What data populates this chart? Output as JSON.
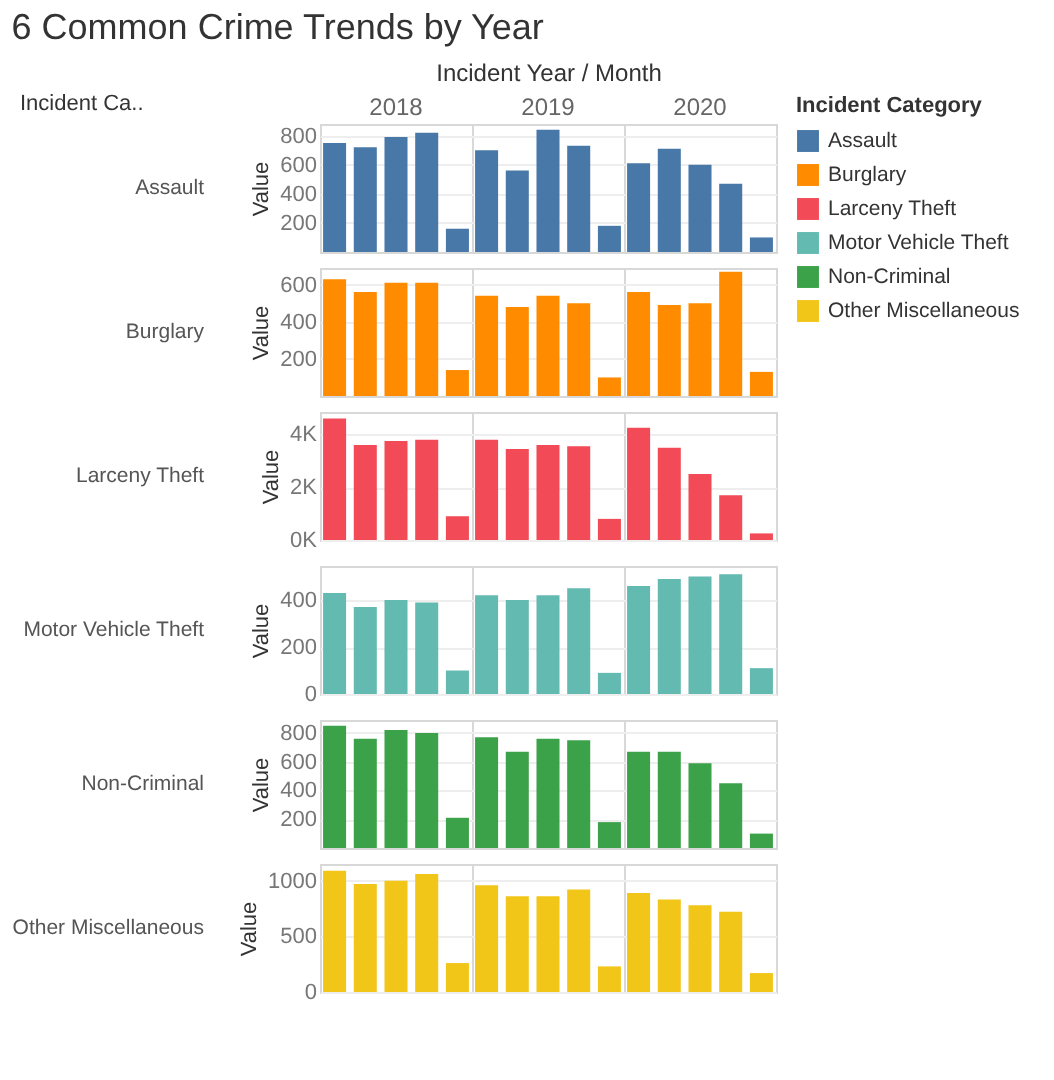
{
  "chart_data": [
    {
      "type": "other",
      "title": "6 Common Crime Trends by Year"
    },
    {
      "type": "bar",
      "title": "Assault",
      "xlabel": "Incident Year / Month",
      "ylabel": "Value",
      "annotations": [
        "Incident Ca.."
      ],
      "categories": [
        "2018",
        "2019",
        "2020"
      ],
      "ylim": [
        0,
        880
      ],
      "yticks": [
        200,
        400,
        600,
        800
      ],
      "grid": true,
      "series": [
        {
          "color": "#4878a8",
          "values": [
            750,
            700,
            610
          ]
        },
        {
          "color": "#4878a8",
          "values": [
            720,
            560,
            710
          ]
        },
        {
          "color": "#4878a8",
          "values": [
            790,
            840,
            600
          ]
        },
        {
          "color": "#4878a8",
          "values": [
            820,
            730,
            470
          ]
        },
        {
          "color": "#4878a8",
          "values": [
            160,
            180,
            100
          ]
        }
      ]
    },
    {
      "type": "bar",
      "title": "Burglary",
      "ylabel": "Value",
      "categories": [
        "2018",
        "2019",
        "2020"
      ],
      "ylim": [
        0,
        690
      ],
      "yticks": [
        200,
        400,
        600
      ],
      "grid": true,
      "tick_labels": "y",
      "series": [
        {
          "color": "#ff8b00",
          "values": [
            630,
            540,
            560
          ]
        },
        {
          "color": "#ff8b00",
          "values": [
            560,
            480,
            490
          ]
        },
        {
          "color": "#ff8b00",
          "values": [
            610,
            540,
            500
          ]
        },
        {
          "color": "#ff8b00",
          "values": [
            610,
            500,
            670
          ]
        },
        {
          "color": "#ff8b00",
          "values": [
            140,
            100,
            130
          ]
        }
      ]
    },
    {
      "type": "bar",
      "title": "Larceny Theft",
      "ylabel": "Value",
      "categories": [
        "2018",
        "2019",
        "2020"
      ],
      "ylim": [
        0,
        4850
      ],
      "yticks": [
        {
          "value": 0,
          "label": "0K"
        },
        {
          "value": 2000,
          "label": "2K"
        },
        {
          "value": 4000,
          "label": "4K"
        }
      ],
      "grid": true,
      "tick_labels": "y",
      "series": [
        {
          "color": "#f24b57",
          "values": [
            4600,
            3800,
            4250
          ]
        },
        {
          "color": "#f24b57",
          "values": [
            3600,
            3450,
            3500
          ]
        },
        {
          "color": "#f24b57",
          "values": [
            3750,
            3600,
            2500
          ]
        },
        {
          "color": "#f24b57",
          "values": [
            3800,
            3550,
            1700
          ]
        },
        {
          "color": "#f24b57",
          "values": [
            900,
            800,
            250
          ]
        }
      ]
    },
    {
      "type": "bar",
      "title": "Motor Vehicle Theft",
      "ylabel": "Value",
      "categories": [
        "2018",
        "2019",
        "2020"
      ],
      "ylim": [
        0,
        545
      ],
      "yticks": [
        0,
        200,
        400
      ],
      "grid": true,
      "tick_labels": "y",
      "series": [
        {
          "color": "#62bab1",
          "values": [
            430,
            420,
            460
          ]
        },
        {
          "color": "#62bab1",
          "values": [
            370,
            400,
            490
          ]
        },
        {
          "color": "#62bab1",
          "values": [
            400,
            420,
            500
          ]
        },
        {
          "color": "#62bab1",
          "values": [
            390,
            450,
            510
          ]
        },
        {
          "color": "#62bab1",
          "values": [
            100,
            90,
            110
          ]
        }
      ]
    },
    {
      "type": "bar",
      "title": "Non-Criminal",
      "ylabel": "Value",
      "categories": [
        "2018",
        "2019",
        "2020"
      ],
      "ylim": [
        0,
        890
      ],
      "yticks": [
        200,
        400,
        600,
        800
      ],
      "grid": true,
      "tick_labels": "y",
      "series": [
        {
          "color": "#3ca24a",
          "values": [
            850,
            770,
            670
          ]
        },
        {
          "color": "#3ca24a",
          "values": [
            760,
            670,
            670
          ]
        },
        {
          "color": "#3ca24a",
          "values": [
            820,
            760,
            590
          ]
        },
        {
          "color": "#3ca24a",
          "values": [
            800,
            750,
            450
          ]
        },
        {
          "color": "#3ca24a",
          "values": [
            210,
            180,
            100
          ]
        }
      ]
    },
    {
      "type": "bar",
      "title": "Other Miscellaneous",
      "ylabel": "Value",
      "categories": [
        "2018",
        "2019",
        "2020"
      ],
      "ylim": [
        0,
        1150
      ],
      "yticks": [
        0,
        500,
        {
          "value": 1000,
          "label": "1000"
        }
      ],
      "grid": true,
      "tick_labels": "y",
      "series": [
        {
          "color": "#f2c618",
          "values": [
            1090,
            960,
            890
          ]
        },
        {
          "color": "#f2c618",
          "values": [
            970,
            860,
            830
          ]
        },
        {
          "color": "#f2c618",
          "values": [
            1000,
            860,
            780
          ]
        },
        {
          "color": "#f2c618",
          "values": [
            1060,
            920,
            720
          ]
        },
        {
          "color": "#f2c618",
          "values": [
            260,
            230,
            170
          ]
        }
      ]
    },
    {
      "type": "other",
      "legend_title": "Incident Category",
      "categories": [
        "Assault",
        "Burglary",
        "Larceny Theft",
        "Motor Vehicle Theft",
        "Non-Criminal",
        "Other Miscellaneous"
      ],
      "colors": [
        "#4878a8",
        "#ff8b00",
        "#f24b57",
        "#62bab1",
        "#3ca24a",
        "#f2c618"
      ]
    }
  ]
}
